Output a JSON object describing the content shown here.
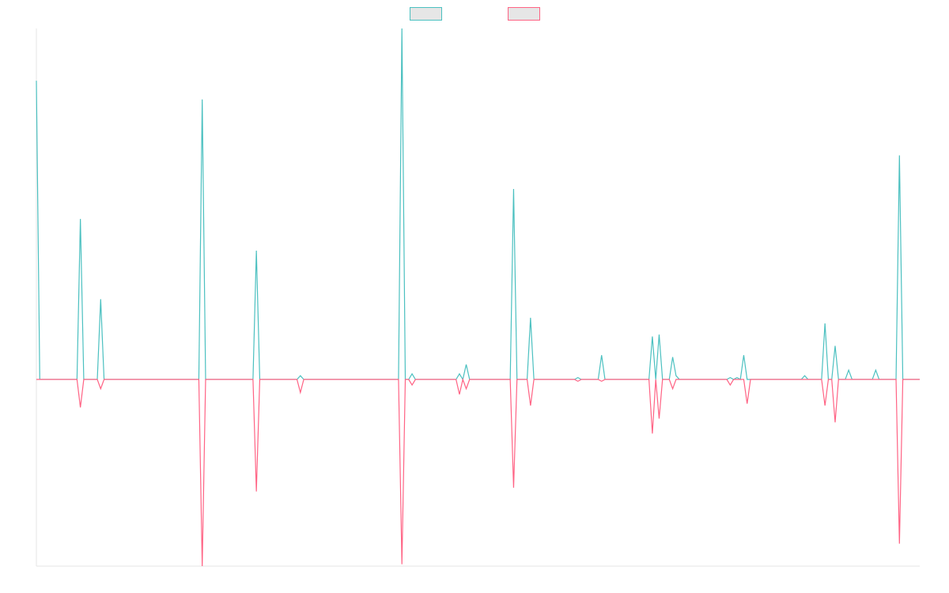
{
  "chart_data": {
    "type": "line",
    "title": "",
    "xlabel": "",
    "ylabel": "",
    "grid": false,
    "legend_position": "top-center",
    "x_count": 262,
    "ylim": [
      -1.0,
      1.88
    ],
    "series": [
      {
        "color": "#4bc0c0",
        "fill": "#e6e6e6",
        "points": [
          [
            0,
            1.6
          ],
          [
            1,
            0
          ],
          [
            12,
            0
          ],
          [
            13,
            0.86
          ],
          [
            14,
            0
          ],
          [
            18,
            0
          ],
          [
            19,
            0.43
          ],
          [
            20,
            0
          ],
          [
            48,
            0
          ],
          [
            49,
            1.5
          ],
          [
            50,
            0
          ],
          [
            64,
            0
          ],
          [
            65,
            0.69
          ],
          [
            66,
            0
          ],
          [
            77,
            0
          ],
          [
            78,
            0.02
          ],
          [
            79,
            0
          ],
          [
            107,
            0
          ],
          [
            108,
            1.88
          ],
          [
            109,
            0
          ],
          [
            110,
            0
          ],
          [
            111,
            0.03
          ],
          [
            112,
            0
          ],
          [
            124,
            0
          ],
          [
            125,
            0.03
          ],
          [
            126,
            0
          ],
          [
            127,
            0.08
          ],
          [
            128,
            0
          ],
          [
            140,
            0
          ],
          [
            141,
            1.02
          ],
          [
            142,
            0
          ],
          [
            145,
            0
          ],
          [
            146,
            0.33
          ],
          [
            147,
            0
          ],
          [
            159,
            0
          ],
          [
            160,
            0.01
          ],
          [
            161,
            0
          ],
          [
            166,
            0
          ],
          [
            167,
            0.13
          ],
          [
            168,
            0
          ],
          [
            181,
            0
          ],
          [
            182,
            0.23
          ],
          [
            183,
            0
          ],
          [
            184,
            0.24
          ],
          [
            185,
            0
          ],
          [
            187,
            0
          ],
          [
            188,
            0.12
          ],
          [
            189,
            0.02
          ],
          [
            190,
            0
          ],
          [
            204,
            0
          ],
          [
            205,
            0.01
          ],
          [
            206,
            0
          ],
          [
            207,
            0.01
          ],
          [
            208,
            0
          ],
          [
            209,
            0.13
          ],
          [
            210,
            0
          ],
          [
            226,
            0
          ],
          [
            227,
            0.02
          ],
          [
            228,
            0
          ],
          [
            232,
            0
          ],
          [
            233,
            0.3
          ],
          [
            234,
            0
          ],
          [
            235,
            0
          ],
          [
            236,
            0.18
          ],
          [
            237,
            0
          ],
          [
            239,
            0
          ],
          [
            240,
            0.05
          ],
          [
            241,
            0
          ],
          [
            247,
            0
          ],
          [
            248,
            0.05
          ],
          [
            249,
            0
          ],
          [
            254,
            0
          ],
          [
            255,
            1.2
          ],
          [
            256,
            0
          ],
          [
            261,
            0
          ]
        ]
      },
      {
        "color": "#ff6384",
        "fill": "#e6e6e6",
        "points": [
          [
            0,
            0
          ],
          [
            12,
            0
          ],
          [
            13,
            -0.15
          ],
          [
            14,
            0
          ],
          [
            18,
            0
          ],
          [
            19,
            -0.05
          ],
          [
            20,
            0
          ],
          [
            48,
            0
          ],
          [
            49,
            -1.0
          ],
          [
            50,
            0
          ],
          [
            64,
            0
          ],
          [
            65,
            -0.6
          ],
          [
            66,
            0
          ],
          [
            77,
            0
          ],
          [
            78,
            -0.07
          ],
          [
            79,
            0
          ],
          [
            107,
            0
          ],
          [
            108,
            -0.99
          ],
          [
            109,
            0
          ],
          [
            110,
            0
          ],
          [
            111,
            -0.03
          ],
          [
            112,
            0
          ],
          [
            124,
            0
          ],
          [
            125,
            -0.08
          ],
          [
            126,
            0
          ],
          [
            127,
            -0.05
          ],
          [
            128,
            0
          ],
          [
            140,
            0
          ],
          [
            141,
            -0.58
          ],
          [
            142,
            0
          ],
          [
            145,
            0
          ],
          [
            146,
            -0.14
          ],
          [
            147,
            0
          ],
          [
            159,
            0
          ],
          [
            160,
            -0.01
          ],
          [
            161,
            0
          ],
          [
            166,
            0
          ],
          [
            167,
            -0.01
          ],
          [
            168,
            0
          ],
          [
            181,
            0
          ],
          [
            182,
            -0.29
          ],
          [
            183,
            0
          ],
          [
            184,
            -0.21
          ],
          [
            185,
            0
          ],
          [
            187,
            0
          ],
          [
            188,
            -0.05
          ],
          [
            189,
            0
          ],
          [
            204,
            0
          ],
          [
            205,
            -0.03
          ],
          [
            206,
            0
          ],
          [
            209,
            0
          ],
          [
            210,
            -0.13
          ],
          [
            211,
            0
          ],
          [
            232,
            0
          ],
          [
            233,
            -0.14
          ],
          [
            234,
            0
          ],
          [
            235,
            0
          ],
          [
            236,
            -0.23
          ],
          [
            237,
            0
          ],
          [
            254,
            0
          ],
          [
            255,
            -0.88
          ],
          [
            256,
            0
          ],
          [
            261,
            0
          ]
        ]
      }
    ]
  }
}
